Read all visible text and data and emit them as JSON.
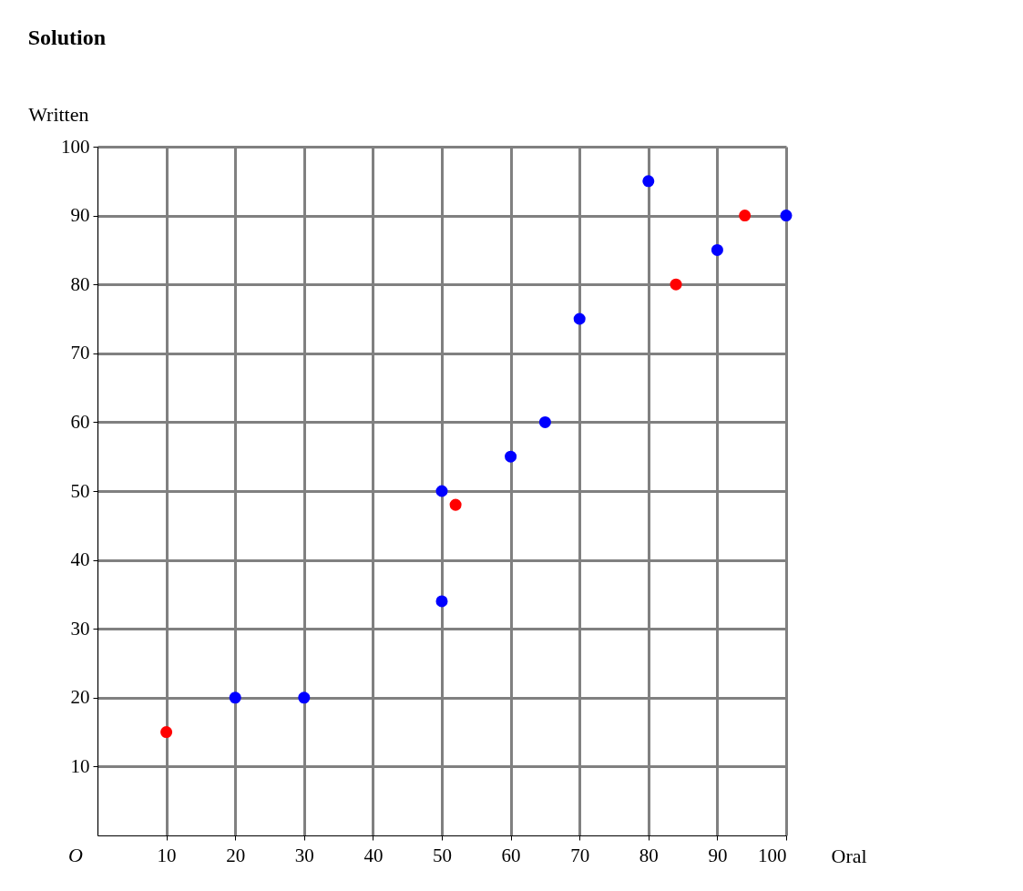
{
  "chart_data": {
    "type": "scatter",
    "title": "Solution",
    "xlabel": "Oral",
    "ylabel": "Written",
    "annotations": [
      "O"
    ],
    "series": [
      {
        "color": "#ff0000",
        "x": [
          10,
          52,
          84,
          94
        ],
        "values": [
          15,
          48,
          80,
          90
        ]
      },
      {
        "color": "#0000ff",
        "x": [
          20,
          30,
          50,
          50,
          60,
          65,
          70,
          80,
          90,
          100
        ],
        "values": [
          20,
          20,
          34,
          50,
          55,
          60,
          75,
          95,
          85,
          90
        ]
      }
    ],
    "xlim": [
      0,
      100
    ],
    "ylim": [
      0,
      100
    ],
    "xticks": [
      10,
      20,
      30,
      40,
      50,
      60,
      70,
      80,
      90,
      100
    ],
    "yticks": [
      10,
      20,
      30,
      40,
      50,
      60,
      70,
      80,
      90,
      100
    ],
    "grid": true,
    "marker": "circle",
    "legend": false
  }
}
